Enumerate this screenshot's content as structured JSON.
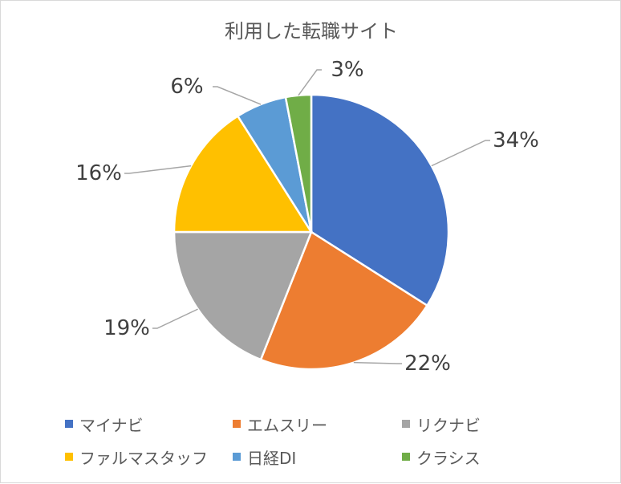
{
  "chart_data": {
    "type": "pie",
    "title": "利用した転職サイト",
    "categories": [
      "マイナビ",
      "エムスリー",
      "リクナビ",
      "ファルマスタッフ",
      "日経DI",
      "クラシス"
    ],
    "values": [
      34,
      22,
      19,
      16,
      6,
      3
    ],
    "labels": [
      "34%",
      "22%",
      "19%",
      "16%",
      "6%",
      "3%"
    ],
    "colors": [
      "#4472C4",
      "#ED7D31",
      "#A5A5A5",
      "#FFC000",
      "#5B9BD5",
      "#70AD47"
    ],
    "start_angle": "12 o'clock",
    "direction": "clockwise",
    "legend_position": "bottom"
  }
}
